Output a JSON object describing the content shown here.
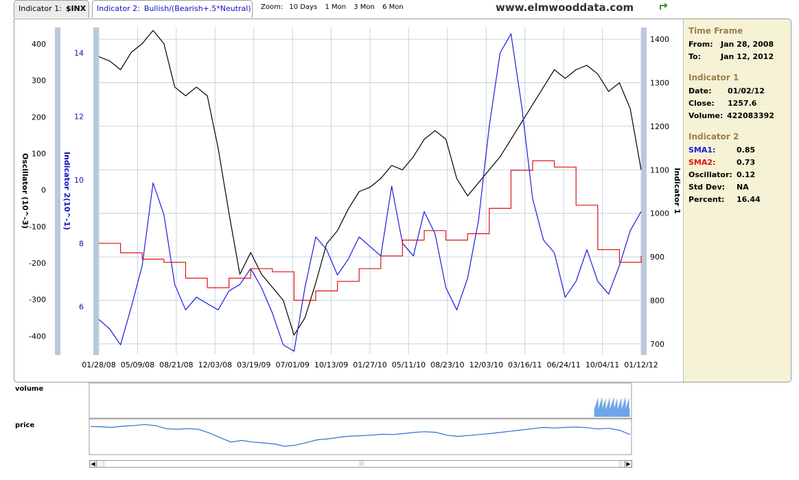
{
  "header": {
    "tab1_label": "Indicator 1:",
    "tab1_value": "$INX",
    "tab2_label": "Indicator 2:",
    "tab2_value": "Bullish/(Bearish+.5*Neutral)",
    "zoom_label": "Zoom:",
    "zoom_options": [
      "10 Days",
      "1 Mon",
      "3 Mon",
      "6 Mon"
    ],
    "site": "www.elmwooddata.com"
  },
  "panel": {
    "timeframe_title": "Time Frame",
    "from_label": "From:",
    "from_value": "Jan 28, 2008",
    "to_label": "To:",
    "to_value": "Jan 12, 2012",
    "ind1_title": "Indicator 1",
    "date_label": "Date:",
    "date_value": "01/02/12",
    "close_label": "Close:",
    "close_value": "1257.6",
    "volume_label": "Volume:",
    "volume_value": "422083392",
    "ind2_title": "Indicator 2",
    "sma1_label": "SMA1:",
    "sma1_value": "0.85",
    "sma2_label": "SMA2:",
    "sma2_value": "0.73",
    "osc_label": "Oscillator:",
    "osc_value": "0.12",
    "std_label": "Std Dev:",
    "std_value": "NA",
    "pct_label": "Percent:",
    "pct_value": "16.44"
  },
  "navigator": {
    "volume_label": "volume",
    "price_label": "price"
  },
  "colors": {
    "price": "#000000",
    "sma1": "#1a1adc",
    "sma2": "#e01010",
    "nav_price": "#2a6fd4",
    "nav_volume": "#6fa4e8",
    "axis_bar": "#b9c9dc"
  },
  "chart_data": {
    "type": "line",
    "x_ticks": [
      "01/28/08",
      "05/09/08",
      "08/21/08",
      "12/03/08",
      "03/19/09",
      "07/01/09",
      "10/13/09",
      "01/27/10",
      "05/11/10",
      "08/23/10",
      "12/03/10",
      "03/16/11",
      "06/24/11",
      "10/04/11",
      "01/12/12"
    ],
    "axes": {
      "oscillator": {
        "label": "Oscillator (10^-3)",
        "ticks": [
          400,
          300,
          200,
          100,
          0,
          -100,
          -200,
          -300,
          -400
        ],
        "range": [
          -450,
          445
        ]
      },
      "indicator2": {
        "label": "Indicator 2(10^-1)",
        "ticks": [
          14,
          12,
          10,
          8,
          6
        ],
        "range": [
          4.5,
          14.8
        ]
      },
      "indicator1": {
        "label": "Indicator 1",
        "ticks": [
          1400,
          1300,
          1200,
          1100,
          1000,
          900,
          800,
          700
        ],
        "range": [
          676,
          1427
        ]
      }
    },
    "series": [
      {
        "name": "",
        "axis": "indicator1",
        "color": "#000000",
        "x": [
          0,
          0.02,
          0.04,
          0.06,
          0.08,
          0.1,
          0.12,
          0.14,
          0.16,
          0.18,
          0.2,
          0.22,
          0.24,
          0.26,
          0.28,
          0.3,
          0.32,
          0.34,
          0.36,
          0.38,
          0.4,
          0.42,
          0.44,
          0.46,
          0.48,
          0.5,
          0.52,
          0.54,
          0.56,
          0.58,
          0.6,
          0.62,
          0.64,
          0.66,
          0.68,
          0.7,
          0.72,
          0.74,
          0.76,
          0.78,
          0.8,
          0.82,
          0.84,
          0.86,
          0.88,
          0.9,
          0.92,
          0.94,
          0.96,
          0.98,
          1.0
        ],
        "y": [
          1360,
          1350,
          1330,
          1370,
          1390,
          1420,
          1390,
          1290,
          1270,
          1290,
          1270,
          1150,
          1000,
          860,
          910,
          860,
          830,
          800,
          720,
          760,
          840,
          930,
          960,
          1010,
          1050,
          1060,
          1080,
          1110,
          1100,
          1130,
          1170,
          1190,
          1170,
          1080,
          1040,
          1070,
          1100,
          1130,
          1170,
          1210,
          1250,
          1290,
          1330,
          1310,
          1330,
          1340,
          1320,
          1280,
          1300,
          1240,
          1100
        ]
      },
      {
        "name": "",
        "axis": "indicator2",
        "color": "#1a1adc",
        "x": [
          0,
          0.02,
          0.04,
          0.06,
          0.08,
          0.1,
          0.12,
          0.14,
          0.16,
          0.18,
          0.2,
          0.22,
          0.24,
          0.26,
          0.28,
          0.3,
          0.32,
          0.34,
          0.36,
          0.38,
          0.4,
          0.42,
          0.44,
          0.46,
          0.48,
          0.5,
          0.52,
          0.54,
          0.56,
          0.58,
          0.6,
          0.62,
          0.64,
          0.66,
          0.68,
          0.7,
          0.72,
          0.74,
          0.76,
          0.78,
          0.8,
          0.82,
          0.84,
          0.86,
          0.88,
          0.9,
          0.92,
          0.94,
          0.96,
          0.98,
          1.0
        ],
        "y": [
          5.6,
          5.3,
          4.8,
          6.0,
          7.3,
          9.9,
          8.9,
          6.7,
          5.9,
          6.3,
          6.1,
          5.9,
          6.5,
          6.7,
          7.2,
          6.6,
          5.8,
          4.8,
          4.6,
          6.6,
          8.2,
          7.8,
          7.0,
          7.5,
          8.2,
          7.9,
          7.6,
          9.8,
          8.0,
          7.6,
          9.0,
          8.3,
          6.6,
          5.9,
          6.9,
          8.7,
          11.7,
          14.0,
          14.6,
          12.3,
          9.4,
          8.1,
          7.7,
          6.3,
          6.8,
          7.8,
          6.8,
          6.4,
          7.3,
          8.4,
          9.0
        ]
      },
      {
        "name": "",
        "axis": "indicator2",
        "color": "#e01010",
        "x": [
          0,
          0.04,
          0.08,
          0.12,
          0.16,
          0.2,
          0.24,
          0.28,
          0.32,
          0.36,
          0.4,
          0.44,
          0.48,
          0.52,
          0.56,
          0.6,
          0.64,
          0.68,
          0.72,
          0.76,
          0.8,
          0.84,
          0.88,
          0.92,
          0.96,
          1.0
        ],
        "y": [
          8.0,
          7.7,
          7.5,
          7.4,
          6.9,
          6.6,
          6.9,
          7.2,
          7.1,
          6.2,
          6.5,
          6.8,
          7.2,
          7.6,
          8.1,
          8.4,
          8.1,
          8.3,
          9.1,
          10.3,
          10.6,
          10.4,
          9.2,
          7.8,
          7.4,
          7.6
        ]
      }
    ]
  }
}
